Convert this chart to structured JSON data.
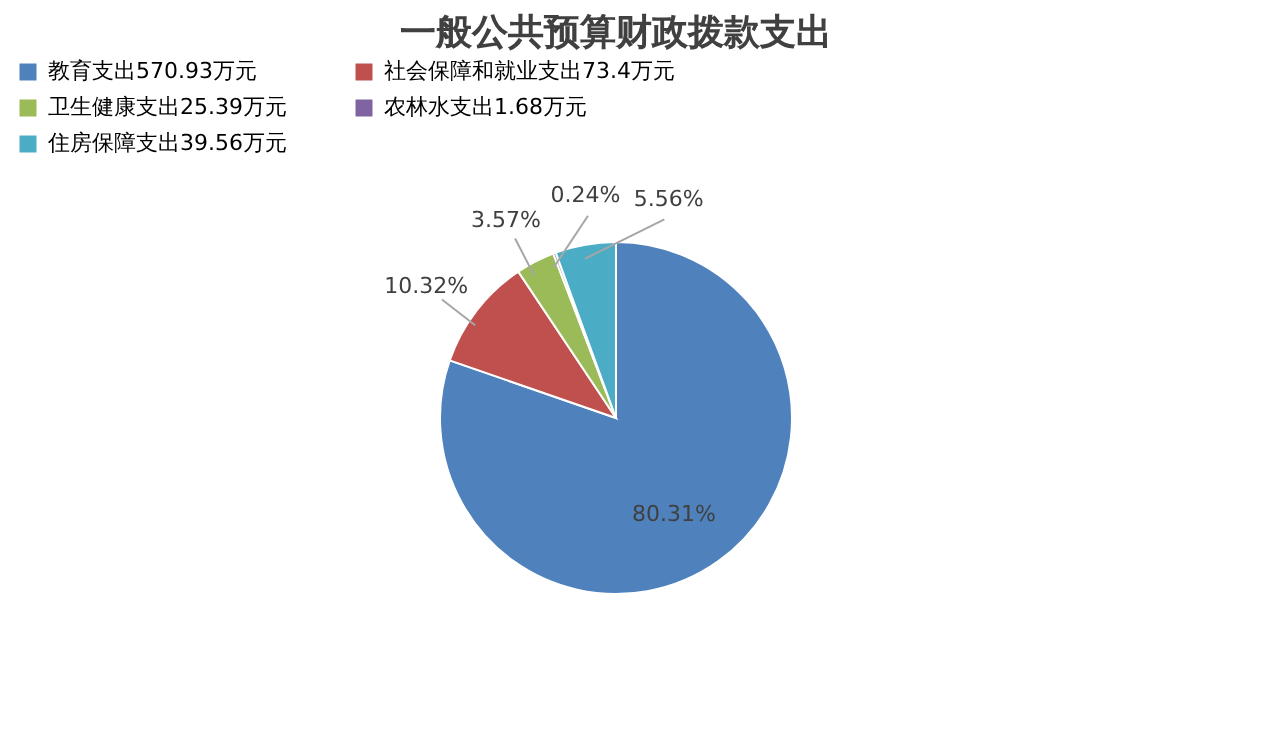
{
  "chart_data": {
    "type": "pie",
    "title": "一般公共预算财政拨款支出",
    "categories": [
      "教育支出570.93万元",
      "社会保障和就业支出73.4万元",
      "卫生健康支出25.39万元",
      "农林水支出1.68万元",
      "住房保障支出39.56万元"
    ],
    "values": [
      80.31,
      10.32,
      3.57,
      0.24,
      5.56
    ],
    "value_labels": [
      "80.31%",
      "10.32%",
      "3.57%",
      "0.24%",
      "5.56%"
    ],
    "colors": [
      "#4f81bd",
      "#c0504d",
      "#9bbb59",
      "#8064a2",
      "#4bacc6"
    ],
    "legend": "top"
  }
}
